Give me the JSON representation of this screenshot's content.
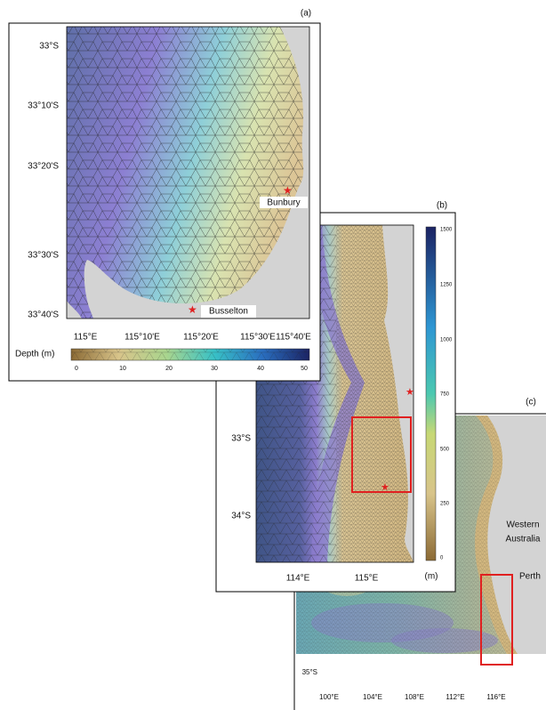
{
  "panels": [
    {
      "label": "(a)",
      "y_ticks": [
        "33°S",
        "33°10'S",
        "33°20'S",
        "33°30'S",
        "33°40'S"
      ],
      "x_ticks": [
        "115°E",
        "115°10'E",
        "115°20'E",
        "115°30'E",
        "115°40'E"
      ],
      "places": [
        "Bunbury",
        "Busselton"
      ],
      "colorbar": {
        "title": "Depth (m)",
        "ticks": [
          0,
          10,
          20,
          30,
          40,
          50
        ]
      }
    },
    {
      "label": "(b)",
      "y_ticks": [
        "33°S",
        "34°S"
      ],
      "x_ticks": [
        "114°E",
        "115°E"
      ],
      "colorbar": {
        "unit": "(m)",
        "ticks": [
          1500,
          1250,
          1000,
          750,
          500,
          250,
          0
        ]
      }
    },
    {
      "label": "(c)",
      "y_ticks": [
        "35°S"
      ],
      "x_ticks": [
        "100°E",
        "104°E",
        "108°E",
        "112°E",
        "116°E"
      ],
      "places": [
        "Western",
        "Australia",
        "Perth"
      ]
    }
  ]
}
